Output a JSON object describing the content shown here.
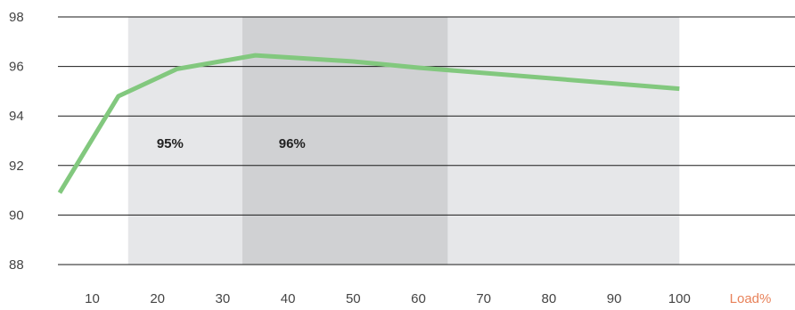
{
  "chart_data": {
    "type": "line",
    "title": "",
    "xlabel": "Load%",
    "ylabel": "",
    "xlim": [
      5,
      115
    ],
    "ylim": [
      88,
      98
    ],
    "x_ticks": [
      "10",
      "20",
      "30",
      "40",
      "50",
      "60",
      "70",
      "80",
      "90",
      "100"
    ],
    "y_ticks": [
      "98",
      "96",
      "94",
      "92",
      "90",
      "88"
    ],
    "grid": true,
    "series": [
      {
        "color": "#82c87e",
        "x": [
          5,
          14,
          23,
          35,
          50,
          60,
          100
        ],
        "y": [
          90.9,
          94.8,
          95.9,
          96.45,
          96.2,
          95.95,
          95.1
        ]
      }
    ],
    "bands": [
      {
        "from": 15.5,
        "to": 33,
        "label": "95%",
        "color": "#e6e7e9"
      },
      {
        "from": 33,
        "to": 64.5,
        "label": "96%",
        "color": "#d0d1d3"
      },
      {
        "from": 64.5,
        "to": 100,
        "label": "",
        "color": "#e6e7e9"
      }
    ],
    "colors": {
      "xlabel": "#e8825a",
      "tick": "#444444",
      "grid": "#1a1a1a"
    }
  }
}
